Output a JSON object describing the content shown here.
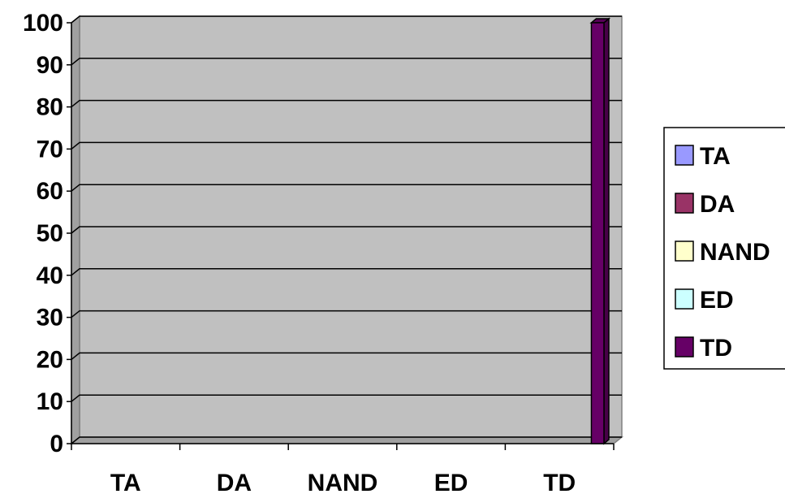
{
  "chart_data": {
    "type": "bar",
    "categories": [
      "TA",
      "DA",
      "NAND",
      "ED",
      "TD"
    ],
    "series": [
      {
        "name": "TA",
        "values": [
          0,
          0,
          0,
          0,
          0
        ],
        "color": "#9999FF"
      },
      {
        "name": "DA",
        "values": [
          0,
          0,
          0,
          0,
          0
        ],
        "color": "#993366"
      },
      {
        "name": "NAND",
        "values": [
          0,
          0,
          0,
          0,
          0
        ],
        "color": "#FFFFCC"
      },
      {
        "name": "ED",
        "values": [
          0,
          0,
          0,
          0,
          0
        ],
        "color": "#CCFFFF"
      },
      {
        "name": "TD",
        "values": [
          0,
          0,
          0,
          0,
          100
        ],
        "color": "#660066"
      }
    ],
    "ylim": [
      0,
      100
    ],
    "yticks": [
      0,
      10,
      20,
      30,
      40,
      50,
      60,
      70,
      80,
      90,
      100
    ],
    "grid": true,
    "legend_position": "right",
    "plot_background": "#C0C0C0"
  }
}
